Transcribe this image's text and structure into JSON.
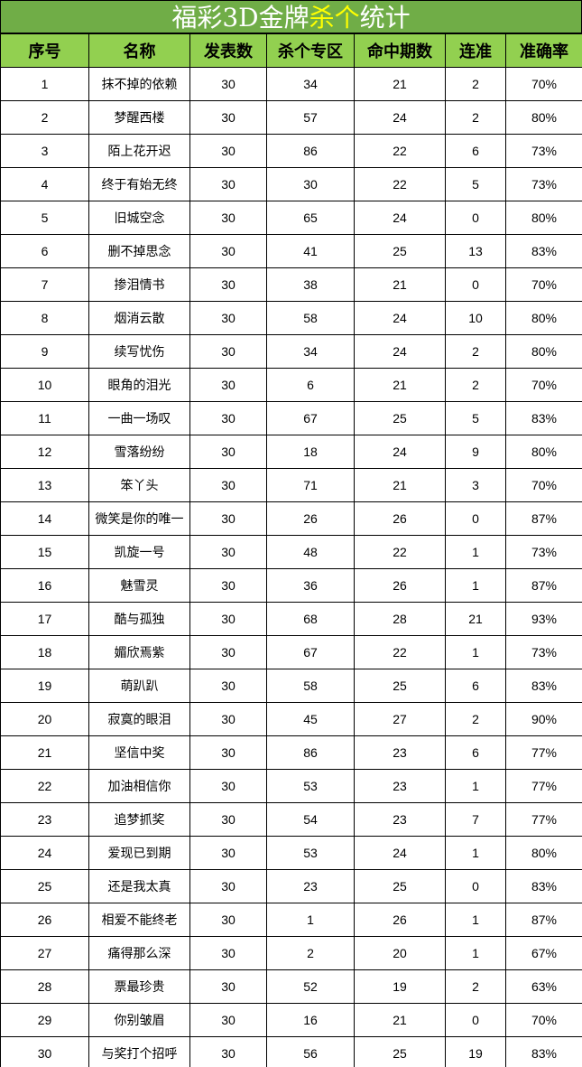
{
  "title": {
    "part1": "福彩3D金牌",
    "highlight": "杀个",
    "part2": "统计"
  },
  "columns": [
    "序号",
    "名称",
    "发表数",
    "杀个专区",
    "命中期数",
    "连准",
    "准确率"
  ],
  "rows": [
    [
      "1",
      "抹不掉的依赖",
      "30",
      "34",
      "21",
      "2",
      "70%"
    ],
    [
      "2",
      "梦醒西楼",
      "30",
      "57",
      "24",
      "2",
      "80%"
    ],
    [
      "3",
      "陌上花开迟",
      "30",
      "86",
      "22",
      "6",
      "73%"
    ],
    [
      "4",
      "终于有始无终",
      "30",
      "30",
      "22",
      "5",
      "73%"
    ],
    [
      "5",
      "旧城空念",
      "30",
      "65",
      "24",
      "0",
      "80%"
    ],
    [
      "6",
      "删不掉思念",
      "30",
      "41",
      "25",
      "13",
      "83%"
    ],
    [
      "7",
      "掺泪情书",
      "30",
      "38",
      "21",
      "0",
      "70%"
    ],
    [
      "8",
      "烟消云散",
      "30",
      "58",
      "24",
      "10",
      "80%"
    ],
    [
      "9",
      "续写忧伤",
      "30",
      "34",
      "24",
      "2",
      "80%"
    ],
    [
      "10",
      "眼角的泪光",
      "30",
      "6",
      "21",
      "2",
      "70%"
    ],
    [
      "11",
      "一曲一场叹",
      "30",
      "67",
      "25",
      "5",
      "83%"
    ],
    [
      "12",
      "雪落纷纷",
      "30",
      "18",
      "24",
      "9",
      "80%"
    ],
    [
      "13",
      "笨丫头",
      "30",
      "71",
      "21",
      "3",
      "70%"
    ],
    [
      "14",
      "微笑是你的唯一",
      "30",
      "26",
      "26",
      "0",
      "87%"
    ],
    [
      "15",
      "凯旋一号",
      "30",
      "48",
      "22",
      "1",
      "73%"
    ],
    [
      "16",
      "魅雪灵",
      "30",
      "36",
      "26",
      "1",
      "87%"
    ],
    [
      "17",
      "酷与孤独",
      "30",
      "68",
      "28",
      "21",
      "93%"
    ],
    [
      "18",
      "媚欣焉紫",
      "30",
      "67",
      "22",
      "1",
      "73%"
    ],
    [
      "19",
      "萌趴趴",
      "30",
      "58",
      "25",
      "6",
      "83%"
    ],
    [
      "20",
      "寂寞的眼泪",
      "30",
      "45",
      "27",
      "2",
      "90%"
    ],
    [
      "21",
      "坚信中奖",
      "30",
      "86",
      "23",
      "6",
      "77%"
    ],
    [
      "22",
      "加油相信你",
      "30",
      "53",
      "23",
      "1",
      "77%"
    ],
    [
      "23",
      "追梦抓奖",
      "30",
      "54",
      "23",
      "7",
      "77%"
    ],
    [
      "24",
      "爱现已到期",
      "30",
      "53",
      "24",
      "1",
      "80%"
    ],
    [
      "25",
      "还是我太真",
      "30",
      "23",
      "25",
      "0",
      "83%"
    ],
    [
      "26",
      "相爱不能终老",
      "30",
      "1",
      "26",
      "1",
      "87%"
    ],
    [
      "27",
      "痛得那么深",
      "30",
      "2",
      "20",
      "1",
      "67%"
    ],
    [
      "28",
      "票最珍贵",
      "30",
      "52",
      "19",
      "2",
      "63%"
    ],
    [
      "29",
      "你别皱眉",
      "30",
      "16",
      "21",
      "0",
      "70%"
    ],
    [
      "30",
      "与奖打个招呼",
      "30",
      "56",
      "25",
      "19",
      "83%"
    ]
  ],
  "colors": {
    "title_bg": "#70ad47",
    "header_bg": "#92d050",
    "highlight": "#ffff00"
  }
}
